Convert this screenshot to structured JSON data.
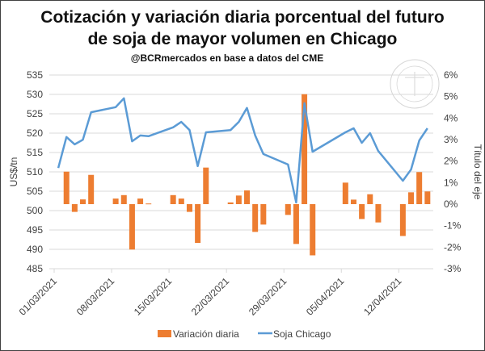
{
  "chart_data": {
    "type": "bar+line",
    "title": [
      "Cotización y variación diaria porcentual del futuro",
      "de soja de mayor volumen en Chicago"
    ],
    "subtitle": "@BCRmercados en base a datos del CME",
    "ylabel": "US$/tn",
    "y2label": "Título del eje",
    "ylim": [
      485,
      535
    ],
    "y2lim": [
      -3,
      6
    ],
    "yticks": [
      "485",
      "490",
      "495",
      "500",
      "505",
      "510",
      "515",
      "520",
      "525",
      "530",
      "535"
    ],
    "y2ticks": [
      "-3%",
      "-2%",
      "-1%",
      "0%",
      "1%",
      "2%",
      "3%",
      "4%",
      "5%",
      "6%"
    ],
    "xticks": [
      "01/03/2021",
      "08/03/2021",
      "15/03/2021",
      "22/03/2021",
      "29/03/2021",
      "05/04/2021",
      "12/04/2021"
    ],
    "grid": true,
    "legend_position": "bottom",
    "x": [
      "2021-03-01",
      "2021-03-02",
      "2021-03-03",
      "2021-03-04",
      "2021-03-05",
      "2021-03-08",
      "2021-03-09",
      "2021-03-10",
      "2021-03-11",
      "2021-03-12",
      "2021-03-15",
      "2021-03-16",
      "2021-03-17",
      "2021-03-18",
      "2021-03-19",
      "2021-03-22",
      "2021-03-23",
      "2021-03-24",
      "2021-03-25",
      "2021-03-26",
      "2021-03-29",
      "2021-03-30",
      "2021-03-31",
      "2021-04-01",
      "2021-04-05",
      "2021-04-06",
      "2021-04-07",
      "2021-04-08",
      "2021-04-09",
      "2021-04-12",
      "2021-04-13",
      "2021-04-14",
      "2021-04-15"
    ],
    "series": [
      {
        "name": "Variación diaria",
        "type": "bar",
        "axis": "right",
        "color": "#ED7D31",
        "values": [
          null,
          1.51,
          -0.36,
          0.22,
          1.36,
          0.26,
          0.42,
          -2.11,
          0.26,
          0.03,
          0.42,
          0.26,
          -0.36,
          -1.8,
          1.7,
          0.08,
          0.4,
          0.64,
          -1.29,
          -0.95,
          -0.5,
          -1.85,
          5.11,
          -2.38,
          1.0,
          0.21,
          -0.69,
          0.46,
          -0.85,
          -1.48,
          0.55,
          1.49,
          0.59
        ]
      },
      {
        "name": "Soja Chicago",
        "type": "line",
        "axis": "left",
        "color": "#5B9BD5",
        "values": [
          511.0,
          519.0,
          517.1,
          518.3,
          525.4,
          526.7,
          529.0,
          517.9,
          519.4,
          519.2,
          521.5,
          522.9,
          520.8,
          511.5,
          520.2,
          520.8,
          522.9,
          526.5,
          519.4,
          514.6,
          511.9,
          502.1,
          527.7,
          515.2,
          520.2,
          521.25,
          517.5,
          520.0,
          515.4,
          507.7,
          510.6,
          518.1,
          521.25
        ]
      }
    ]
  }
}
